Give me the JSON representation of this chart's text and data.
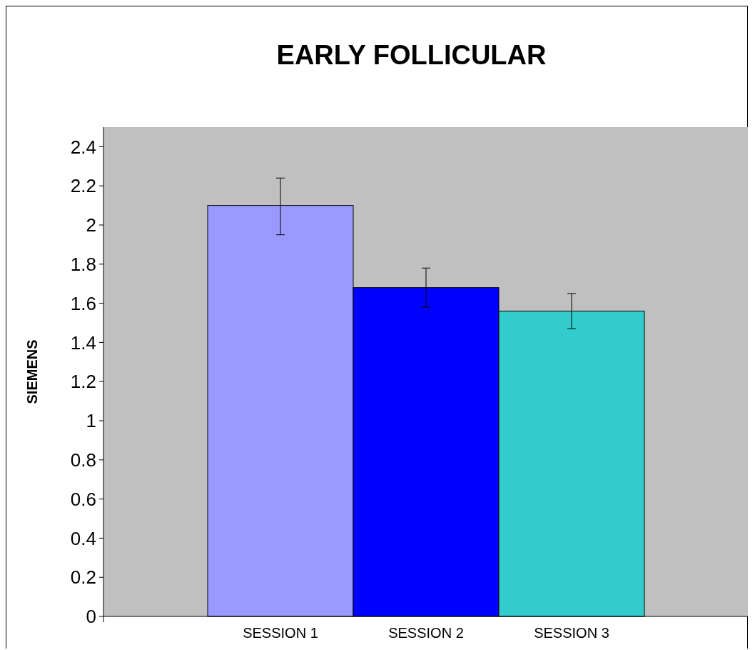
{
  "chart_data": {
    "type": "bar",
    "title": "EARLY FOLLICULAR",
    "ylabel": "SIEMENS",
    "categories": [
      "SESSION 1",
      "SESSION 2",
      "SESSION 3"
    ],
    "values": [
      2.1,
      1.68,
      1.56
    ],
    "colors": [
      "#9999ff",
      "#0000ff",
      "#33cccc"
    ],
    "errors": [
      [
        1.95,
        2.24
      ],
      [
        1.58,
        1.78
      ],
      [
        1.47,
        1.65
      ]
    ],
    "ylim": [
      0,
      2.5
    ],
    "yticks": [
      0,
      0.2,
      0.4,
      0.6,
      0.8,
      1,
      1.2,
      1.4,
      1.6,
      1.8,
      2,
      2.2,
      2.4
    ],
    "grid": false
  }
}
